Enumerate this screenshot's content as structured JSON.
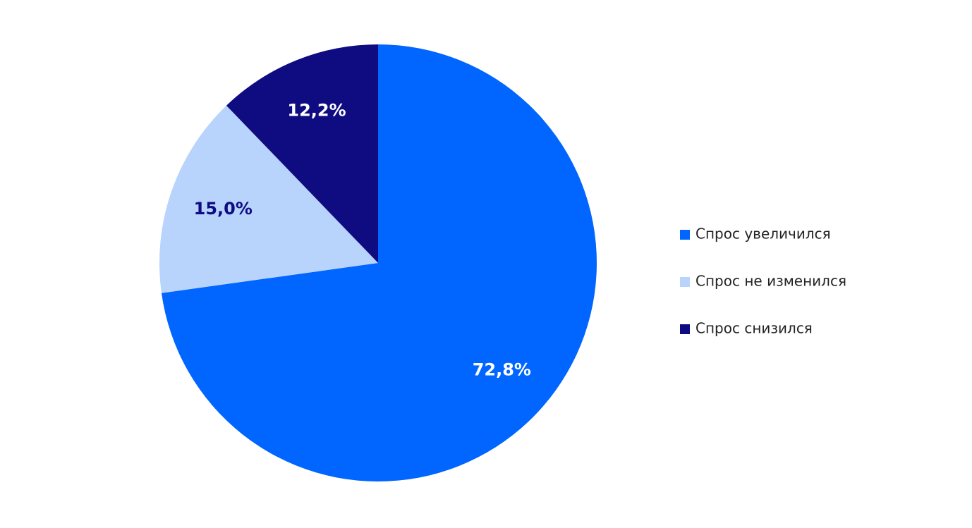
{
  "chart_data": {
    "type": "pie",
    "categories": [
      "Спрос увеличился",
      "Спрос не изменился",
      "Спрос снизился"
    ],
    "values": [
      72.8,
      15.0,
      12.2
    ],
    "value_labels": [
      "72,8%",
      "15,0%",
      "12,2%"
    ],
    "colors": [
      "#0066ff",
      "#b8d4fc",
      "#0f0c82"
    ],
    "value_label_colors": [
      "#ffffff",
      "#0f0c82",
      "#ffffff"
    ],
    "legend": "right"
  }
}
